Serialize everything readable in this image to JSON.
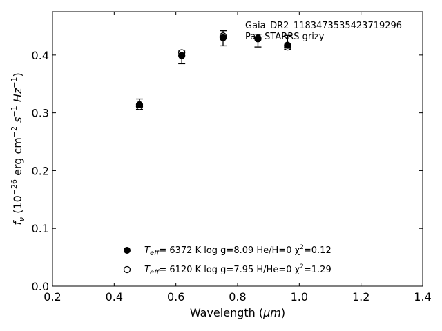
{
  "chart_data": {
    "type": "scatter",
    "annotation_lines": [
      "Gaia_DR2_1183473535423719296",
      "Pan-STARRS grizy"
    ],
    "xlabel": {
      "main": "Wavelength (",
      "unit": "μm",
      "close": ")"
    },
    "ylabel": {
      "sym": "f",
      "sub": "ν",
      "open": " (10",
      "exp": "−26",
      "unit": " erg cm",
      "unit_exp": "−2",
      "s": " s",
      "s_exp": "−1",
      "hz": " Hz",
      "hz_exp": "−1",
      "close": ")"
    },
    "xlim": [
      0.2,
      1.4
    ],
    "ylim": [
      0.0,
      0.475
    ],
    "x_ticks": [
      0.2,
      0.4,
      0.6,
      0.8,
      1.0,
      1.2,
      1.4
    ],
    "x_tick_labels": [
      "0.2",
      "0.4",
      "0.6",
      "0.8",
      "1.0",
      "1.2",
      "1.4"
    ],
    "y_ticks": [
      0.0,
      0.1,
      0.2,
      0.3,
      0.4
    ],
    "y_tick_labels": [
      "0.0",
      "0.1",
      "0.2",
      "0.3",
      "0.4"
    ],
    "grid": false,
    "legend_position": "lower-center",
    "observed": {
      "x": [
        0.482,
        0.619,
        0.753,
        0.866,
        0.962
      ],
      "y": [
        0.315,
        0.396,
        0.429,
        0.425,
        0.422
      ],
      "yerr": [
        0.009,
        0.011,
        0.013,
        0.011,
        0.012
      ]
    },
    "series": [
      {
        "marker": "filled-circle",
        "legend": {
          "pre": "T",
          "sub": "eff",
          "text": "=  6372 K  log g=8.09  He/H=0  χ",
          "sup": "2",
          "post": "=0.12"
        },
        "x": [
          0.482,
          0.619,
          0.753,
          0.866,
          0.962
        ],
        "y": [
          0.314,
          0.399,
          0.43,
          0.429,
          0.417
        ]
      },
      {
        "marker": "open-circle",
        "legend": {
          "pre": "T",
          "sub": "eff",
          "text": "=  6120 K  log g=7.95  H/He=0  χ",
          "sup": "2",
          "post": "=1.29"
        },
        "x": [
          0.482,
          0.619,
          0.753,
          0.866,
          0.962
        ],
        "y": [
          0.311,
          0.404,
          0.433,
          0.428,
          0.414
        ]
      }
    ]
  }
}
